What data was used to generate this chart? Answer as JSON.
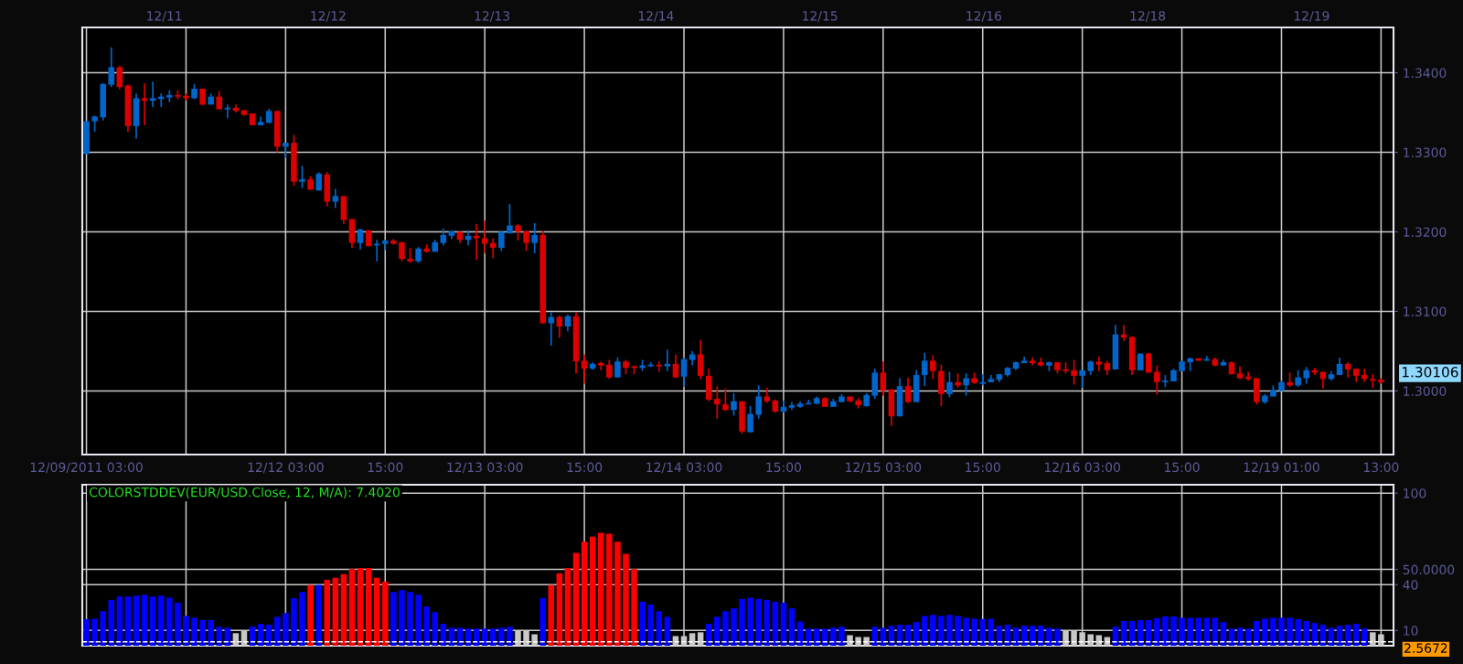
{
  "chart_data": [
    {
      "type": "candlestick",
      "categories": [
        "12/09/2011 03:00",
        null,
        null,
        null,
        null,
        null,
        null,
        null,
        null,
        null,
        null,
        null,
        null,
        null,
        null,
        null,
        null,
        null,
        null,
        null,
        null,
        null,
        null,
        null,
        "12/12 03:00",
        null,
        null,
        null,
        null,
        null,
        null,
        null,
        null,
        null,
        null,
        null,
        "15:00",
        null,
        null,
        null,
        null,
        null,
        null,
        null,
        null,
        null,
        null,
        null,
        "12/13 03:00",
        null,
        null,
        null,
        null,
        null,
        null,
        null,
        null,
        null,
        null,
        null,
        "15:00",
        null,
        null,
        null,
        null,
        null,
        null,
        null,
        null,
        null,
        null,
        null,
        "12/14 03:00",
        null,
        null,
        null,
        null,
        null,
        null,
        null,
        null,
        null,
        null,
        null,
        "15:00",
        null,
        null,
        null,
        null,
        null,
        null,
        null,
        null,
        null,
        null,
        null,
        "12/15 03:00",
        null,
        null,
        null,
        null,
        null,
        null,
        null,
        null,
        null,
        null,
        null,
        "15:00",
        null,
        null,
        null,
        null,
        null,
        null,
        null,
        null,
        null,
        null,
        null,
        "12/16 03:00",
        null,
        null,
        null,
        null,
        null,
        null,
        null,
        null,
        null,
        null,
        null,
        "15:00",
        null,
        null,
        null,
        null,
        null,
        null,
        null,
        null,
        null,
        null,
        null,
        "12/19 01:00",
        null,
        null,
        null,
        null,
        null,
        null,
        null,
        null,
        null,
        null,
        null,
        "13:00"
      ],
      "ohlc": [
        [
          1.3298,
          1.3339,
          1.3298,
          1.3339
        ],
        [
          1.3339,
          1.3346,
          1.3326,
          1.3345
        ],
        [
          1.3344,
          1.3387,
          1.334,
          1.3386
        ],
        [
          1.3385,
          1.3432,
          1.3382,
          1.3407
        ],
        [
          1.3407,
          1.3409,
          1.3379,
          1.3382
        ],
        [
          1.3384,
          1.3385,
          1.3326,
          1.3333
        ],
        [
          1.3333,
          1.3374,
          1.3317,
          1.3368
        ],
        [
          1.3368,
          1.3387,
          1.3334,
          1.3365
        ],
        [
          1.3365,
          1.3389,
          1.3357,
          1.3368
        ],
        [
          1.3367,
          1.3374,
          1.3357,
          1.337
        ],
        [
          1.3369,
          1.3378,
          1.3363,
          1.3372
        ],
        [
          1.3372,
          1.3378,
          1.3367,
          1.337
        ],
        [
          1.3371,
          1.3374,
          1.3365,
          1.3368
        ],
        [
          1.3368,
          1.3386,
          1.3367,
          1.338
        ],
        [
          1.338,
          1.338,
          1.3359,
          1.336
        ],
        [
          1.336,
          1.3374,
          1.336,
          1.337
        ],
        [
          1.337,
          1.3377,
          1.3354,
          1.3354
        ],
        [
          1.3354,
          1.336,
          1.3343,
          1.3356
        ],
        [
          1.3356,
          1.336,
          1.335,
          1.3352
        ],
        [
          1.3353,
          1.3353,
          1.3346,
          1.3347
        ],
        [
          1.3349,
          1.3349,
          1.3334,
          1.3334
        ],
        [
          1.3334,
          1.3345,
          1.3334,
          1.3338
        ],
        [
          1.3337,
          1.3355,
          1.3337,
          1.3352
        ],
        [
          1.3352,
          1.3352,
          1.33,
          1.3307
        ],
        [
          1.3307,
          1.3312,
          1.3293,
          1.3312
        ],
        [
          1.3312,
          1.3322,
          1.3258,
          1.3263
        ],
        [
          1.3263,
          1.3283,
          1.3255,
          1.3266
        ],
        [
          1.3266,
          1.327,
          1.3253,
          1.3253
        ],
        [
          1.3252,
          1.3275,
          1.3252,
          1.3273
        ],
        [
          1.3272,
          1.3275,
          1.3232,
          1.3238
        ],
        [
          1.3238,
          1.3254,
          1.323,
          1.3245
        ],
        [
          1.3245,
          1.3245,
          1.321,
          1.3215
        ],
        [
          1.3216,
          1.3216,
          1.318,
          1.3186
        ],
        [
          1.3186,
          1.3204,
          1.3178,
          1.3203
        ],
        [
          1.3202,
          1.3202,
          1.3182,
          1.3182
        ],
        [
          1.3183,
          1.319,
          1.3163,
          1.3185
        ],
        [
          1.3185,
          1.319,
          1.3177,
          1.3189
        ],
        [
          1.3189,
          1.3191,
          1.3184,
          1.3185
        ],
        [
          1.3187,
          1.3187,
          1.3163,
          1.3166
        ],
        [
          1.3166,
          1.318,
          1.3161,
          1.3163
        ],
        [
          1.3163,
          1.3181,
          1.3161,
          1.3179
        ],
        [
          1.3179,
          1.3184,
          1.3174,
          1.3175
        ],
        [
          1.3175,
          1.319,
          1.3175,
          1.3187
        ],
        [
          1.3186,
          1.3204,
          1.3183,
          1.3196
        ],
        [
          1.3195,
          1.3201,
          1.3191,
          1.3201
        ],
        [
          1.32,
          1.32,
          1.3186,
          1.319
        ],
        [
          1.319,
          1.3202,
          1.3183,
          1.3195
        ],
        [
          1.3195,
          1.321,
          1.3165,
          1.3192
        ],
        [
          1.3192,
          1.3214,
          1.3173,
          1.3185
        ],
        [
          1.3186,
          1.3192,
          1.3167,
          1.318
        ],
        [
          1.318,
          1.3202,
          1.3176,
          1.32
        ],
        [
          1.3198,
          1.3235,
          1.3198,
          1.3208
        ],
        [
          1.3208,
          1.321,
          1.3189,
          1.32
        ],
        [
          1.3201,
          1.3201,
          1.3176,
          1.3186
        ],
        [
          1.3186,
          1.3211,
          1.3173,
          1.3196
        ],
        [
          1.3196,
          1.3201,
          1.3085,
          1.3085
        ],
        [
          1.3085,
          1.3099,
          1.3057,
          1.3093
        ],
        [
          1.3093,
          1.3095,
          1.3067,
          1.3081
        ],
        [
          1.3081,
          1.3096,
          1.3075,
          1.3094
        ],
        [
          1.3094,
          1.3099,
          1.3022,
          1.3037
        ],
        [
          1.3038,
          1.3046,
          1.3009,
          1.3028
        ],
        [
          1.3028,
          1.3036,
          1.3027,
          1.3034
        ],
        [
          1.3035,
          1.3037,
          1.3026,
          1.3032
        ],
        [
          1.3033,
          1.3039,
          1.3015,
          1.3017
        ],
        [
          1.3017,
          1.3042,
          1.3017,
          1.3037
        ],
        [
          1.3037,
          1.3039,
          1.3021,
          1.3029
        ],
        [
          1.3031,
          1.3032,
          1.3021,
          1.3029
        ],
        [
          1.3029,
          1.3039,
          1.3025,
          1.3032
        ],
        [
          1.3031,
          1.3036,
          1.303,
          1.3033
        ],
        [
          1.3033,
          1.3037,
          1.3024,
          1.3031
        ],
        [
          1.3031,
          1.3052,
          1.3025,
          1.3034
        ],
        [
          1.3034,
          1.3046,
          1.3016,
          1.3017
        ],
        [
          1.3018,
          1.3042,
          1.3005,
          1.304
        ],
        [
          1.3039,
          1.305,
          1.3032,
          1.3046
        ],
        [
          1.3046,
          1.3064,
          1.3015,
          1.3019
        ],
        [
          1.3019,
          1.3028,
          1.2987,
          1.2989
        ],
        [
          1.299,
          1.3006,
          1.2965,
          1.2983
        ],
        [
          1.2983,
          1.3003,
          1.2975,
          1.2976
        ],
        [
          1.2976,
          1.2997,
          1.2969,
          1.2987
        ],
        [
          1.2987,
          1.2987,
          1.2946,
          1.2949
        ],
        [
          1.2948,
          1.2981,
          1.2948,
          1.2971
        ],
        [
          1.297,
          1.3007,
          1.2965,
          1.2993
        ],
        [
          1.2993,
          1.3004,
          1.2985,
          1.2987
        ],
        [
          1.2988,
          1.2989,
          1.2973,
          1.2974
        ],
        [
          1.2974,
          1.2988,
          1.2973,
          1.298
        ],
        [
          1.2979,
          1.2986,
          1.2976,
          1.2982
        ],
        [
          1.298,
          1.2987,
          1.2979,
          1.2984
        ],
        [
          1.2983,
          1.2989,
          1.2983,
          1.2985
        ],
        [
          1.2984,
          1.2993,
          1.2983,
          1.2991
        ],
        [
          1.2991,
          1.2992,
          1.298,
          1.298
        ],
        [
          1.298,
          1.299,
          1.298,
          1.2987
        ],
        [
          1.2986,
          1.2996,
          1.2986,
          1.2993
        ],
        [
          1.2993,
          1.2993,
          1.2986,
          1.2987
        ],
        [
          1.2988,
          1.2991,
          1.2978,
          1.2982
        ],
        [
          1.2981,
          1.2997,
          1.298,
          1.2995
        ],
        [
          1.2994,
          1.3028,
          1.299,
          1.3023
        ],
        [
          1.3023,
          1.3037,
          1.2994,
          1.3
        ],
        [
          1.3002,
          1.3002,
          1.2956,
          1.2968
        ],
        [
          1.2968,
          1.3016,
          1.2968,
          1.3006
        ],
        [
          1.3006,
          1.3017,
          1.2985,
          1.2986
        ],
        [
          1.2986,
          1.3026,
          1.2986,
          1.302
        ],
        [
          1.302,
          1.3048,
          1.3006,
          1.3038
        ],
        [
          1.3038,
          1.3045,
          1.3015,
          1.3025
        ],
        [
          1.3025,
          1.3033,
          1.2981,
          1.2996
        ],
        [
          1.2996,
          1.3024,
          1.2992,
          1.3011
        ],
        [
          1.3011,
          1.3022,
          1.3004,
          1.3007
        ],
        [
          1.3007,
          1.3022,
          1.2994,
          1.3016
        ],
        [
          1.3016,
          1.3023,
          1.3009,
          1.301
        ],
        [
          1.3009,
          1.3021,
          1.3007,
          1.3011
        ],
        [
          1.3011,
          1.302,
          1.3011,
          1.3015
        ],
        [
          1.3014,
          1.3021,
          1.3011,
          1.3021
        ],
        [
          1.302,
          1.303,
          1.3018,
          1.3029
        ],
        [
          1.3028,
          1.3037,
          1.3026,
          1.3036
        ],
        [
          1.3035,
          1.3043,
          1.3035,
          1.3038
        ],
        [
          1.3038,
          1.3042,
          1.3032,
          1.3035
        ],
        [
          1.3036,
          1.3042,
          1.3031,
          1.3032
        ],
        [
          1.3032,
          1.3037,
          1.3025,
          1.3036
        ],
        [
          1.3036,
          1.3036,
          1.3022,
          1.3026
        ],
        [
          1.3027,
          1.3036,
          1.3022,
          1.3025
        ],
        [
          1.3026,
          1.3039,
          1.3008,
          1.3019
        ],
        [
          1.3019,
          1.3026,
          1.3004,
          1.3026
        ],
        [
          1.3025,
          1.3038,
          1.302,
          1.3037
        ],
        [
          1.3037,
          1.3043,
          1.3025,
          1.3033
        ],
        [
          1.3035,
          1.3038,
          1.302,
          1.3026
        ],
        [
          1.3027,
          1.3083,
          1.3027,
          1.3071
        ],
        [
          1.3071,
          1.3083,
          1.3063,
          1.3067
        ],
        [
          1.3068,
          1.3068,
          1.302,
          1.3026
        ],
        [
          1.3026,
          1.3047,
          1.3026,
          1.3047
        ],
        [
          1.3047,
          1.3048,
          1.3023,
          1.3023
        ],
        [
          1.3024,
          1.3032,
          1.2995,
          1.3011
        ],
        [
          1.3011,
          1.302,
          1.3005,
          1.3013
        ],
        [
          1.3012,
          1.3028,
          1.3012,
          1.3026
        ],
        [
          1.3025,
          1.3038,
          1.3025,
          1.3037
        ],
        [
          1.3036,
          1.3042,
          1.3025,
          1.3041
        ],
        [
          1.3041,
          1.3041,
          1.3038,
          1.3038
        ],
        [
          1.3038,
          1.3044,
          1.3038,
          1.304
        ],
        [
          1.304,
          1.3042,
          1.3031,
          1.3032
        ],
        [
          1.3032,
          1.3039,
          1.3032,
          1.3036
        ],
        [
          1.3036,
          1.3037,
          1.3021,
          1.3021
        ],
        [
          1.3022,
          1.3031,
          1.3015,
          1.3016
        ],
        [
          1.3018,
          1.3024,
          1.3013,
          1.3015
        ],
        [
          1.3016,
          1.3016,
          1.2983,
          1.2986
        ],
        [
          1.2986,
          1.2996,
          1.2984,
          1.2994
        ],
        [
          1.2993,
          1.3007,
          1.2993,
          1.3001
        ],
        [
          1.3,
          1.3013,
          1.3,
          1.3011
        ],
        [
          1.3011,
          1.3023,
          1.3005,
          1.3007
        ],
        [
          1.3007,
          1.3026,
          1.3005,
          1.3017
        ],
        [
          1.3016,
          1.303,
          1.3009,
          1.3026
        ],
        [
          1.3026,
          1.3029,
          1.302,
          1.3023
        ],
        [
          1.3024,
          1.3024,
          1.3003,
          1.3015
        ],
        [
          1.3015,
          1.3025,
          1.3013,
          1.3021
        ],
        [
          1.302,
          1.3042,
          1.302,
          1.3034
        ],
        [
          1.3034,
          1.3036,
          1.3017,
          1.3027
        ],
        [
          1.3028,
          1.3028,
          1.3011,
          1.3019
        ],
        [
          1.302,
          1.3028,
          1.3011,
          1.3015
        ],
        [
          1.3015,
          1.3021,
          1.3004,
          1.3013
        ],
        [
          1.3014,
          1.3016,
          1.3009,
          1.3011
        ]
      ],
      "colors": [
        "#0066cc",
        "#0066cc",
        "#0066cc",
        "#0066cc",
        "#dd0000",
        "#dd0000",
        "#0066cc",
        "#dd0000",
        "#0066cc",
        "#0066cc",
        "#0066cc",
        "#dd0000",
        "#dd0000",
        "#0066cc",
        "#dd0000",
        "#0066cc",
        "#dd0000",
        "#0066cc",
        "#dd0000",
        "#dd0000",
        "#dd0000",
        "#0066cc",
        "#0066cc",
        "#dd0000",
        "#0066cc",
        "#dd0000",
        "#0066cc",
        "#dd0000",
        "#0066cc",
        "#dd0000",
        "#0066cc",
        "#dd0000",
        "#dd0000",
        "#0066cc",
        "#dd0000",
        "#0066cc",
        "#0066cc",
        "#dd0000",
        "#dd0000",
        "#dd0000",
        "#0066cc",
        "#dd0000",
        "#0066cc",
        "#0066cc",
        "#0066cc",
        "#dd0000",
        "#0066cc",
        "#dd0000",
        "#dd0000",
        "#dd0000",
        "#0066cc",
        "#0066cc",
        "#dd0000",
        "#dd0000",
        "#0066cc",
        "#dd0000",
        "#0066cc",
        "#dd0000",
        "#0066cc",
        "#dd0000",
        "#dd0000",
        "#0066cc",
        "#dd0000",
        "#dd0000",
        "#0066cc",
        "#dd0000",
        "#dd0000",
        "#0066cc",
        "#0066cc",
        "#dd0000",
        "#0066cc",
        "#dd0000",
        "#0066cc",
        "#0066cc",
        "#dd0000",
        "#dd0000",
        "#dd0000",
        "#dd0000",
        "#0066cc",
        "#dd0000",
        "#0066cc",
        "#0066cc",
        "#dd0000",
        "#dd0000",
        "#0066cc",
        "#0066cc",
        "#0066cc",
        "#0066cc",
        "#0066cc",
        "#dd0000",
        "#0066cc",
        "#0066cc",
        "#dd0000",
        "#dd0000",
        "#0066cc",
        "#0066cc",
        "#dd0000",
        "#dd0000",
        "#0066cc",
        "#dd0000",
        "#0066cc",
        "#0066cc",
        "#dd0000",
        "#dd0000",
        "#0066cc",
        "#dd0000",
        "#0066cc",
        "#dd0000",
        "#0066cc",
        "#0066cc",
        "#0066cc",
        "#0066cc",
        "#0066cc",
        "#0066cc",
        "#dd0000",
        "#dd0000",
        "#0066cc",
        "#dd0000",
        "#dd0000",
        "#dd0000",
        "#0066cc",
        "#0066cc",
        "#dd0000",
        "#dd0000",
        "#0066cc",
        "#dd0000",
        "#dd0000",
        "#0066cc",
        "#dd0000",
        "#dd0000",
        "#0066cc",
        "#0066cc",
        "#0066cc",
        "#0066cc",
        "#dd0000",
        "#0066cc",
        "#dd0000",
        "#0066cc",
        "#dd0000",
        "#dd0000",
        "#dd0000",
        "#dd0000",
        "#0066cc",
        "#0066cc",
        "#0066cc",
        "#dd0000",
        "#0066cc",
        "#0066cc",
        "#dd0000",
        "#dd0000",
        "#0066cc",
        "#0066cc",
        "#dd0000",
        "#dd0000",
        "#dd0000",
        "#dd0000",
        "#dd0000"
      ],
      "ylim": [
        1.292,
        1.3457
      ],
      "yticks": [
        {
          "value": 1.3,
          "label": "1.3000"
        },
        {
          "value": 1.31,
          "label": "1.3100"
        },
        {
          "value": 1.32,
          "label": "1.3200"
        },
        {
          "value": 1.33,
          "label": "1.3300"
        },
        {
          "value": 1.34,
          "label": "1.3400"
        }
      ],
      "grid": true,
      "annotations": [
        "12/11",
        "12/12",
        "12/13",
        "12/14",
        "12/15",
        "12/16",
        "12/18",
        "12/19",
        "1.30106"
      ]
    },
    {
      "type": "bar",
      "title": "COLORSTDDEV(EUR/USD.Close, 12, M/A): 7.4020",
      "categories": [
        null,
        null,
        null,
        null,
        null,
        null,
        null,
        null,
        null,
        null,
        null,
        null,
        null,
        null,
        null,
        null,
        null,
        null,
        null,
        null,
        null,
        null,
        null,
        null,
        null,
        null,
        null,
        null,
        null,
        null,
        null,
        null,
        null,
        null,
        null,
        null,
        null,
        null,
        null,
        null,
        null,
        null,
        null,
        null,
        null,
        null,
        null,
        null,
        null,
        null,
        null,
        null,
        null,
        null,
        null,
        null,
        null,
        null,
        null,
        null,
        null,
        null,
        null,
        null,
        null,
        null,
        null,
        null,
        null,
        null,
        null,
        null,
        null,
        null,
        null,
        null,
        null,
        null,
        null,
        null,
        null,
        null,
        null,
        null,
        null,
        null,
        null,
        null,
        null,
        null,
        null,
        null,
        null,
        null,
        null,
        null,
        null,
        null,
        null,
        null,
        null,
        null,
        null,
        null,
        null,
        null,
        null,
        null,
        null,
        null,
        null,
        null,
        null,
        null,
        null,
        null,
        null,
        null,
        null,
        null,
        null,
        null,
        null,
        null,
        null,
        null,
        null,
        null,
        null,
        null,
        null,
        null,
        null,
        null,
        null,
        null,
        null,
        null,
        null,
        null,
        null,
        null,
        null,
        null,
        null,
        null,
        null,
        null,
        null,
        null,
        null,
        null,
        null,
        null,
        null,
        null,
        null
      ],
      "values": [
        17.4,
        17.7,
        22.6,
        30.0,
        32.2,
        32.2,
        32.8,
        33.4,
        32.2,
        32.8,
        31.5,
        28.2,
        19.5,
        18.3,
        16.8,
        16.8,
        12.5,
        11.8,
        8.2,
        9.7,
        12.5,
        14.3,
        13.7,
        18.9,
        21.4,
        31.2,
        35.2,
        39.8,
        39.8,
        43.2,
        44.5,
        46.9,
        50.3,
        50.9,
        50.9,
        44.5,
        42.0,
        35.2,
        36.5,
        35.2,
        33.4,
        25.7,
        22.0,
        14.3,
        11.8,
        11.8,
        11.2,
        11.2,
        11.2,
        11.2,
        11.8,
        12.5,
        9.7,
        9.7,
        7.5,
        31.2,
        39.8,
        47.5,
        50.9,
        60.8,
        68.2,
        71.5,
        74.0,
        73.4,
        68.2,
        60.2,
        50.3,
        28.8,
        26.9,
        22.6,
        18.9,
        6.3,
        6.3,
        8.2,
        8.8,
        14.3,
        18.9,
        22.6,
        24.5,
        30.6,
        31.5,
        30.6,
        30.0,
        28.8,
        28.2,
        24.5,
        15.8,
        11.2,
        11.2,
        11.2,
        11.8,
        12.5,
        6.9,
        5.7,
        5.7,
        12.5,
        11.8,
        13.1,
        13.7,
        13.7,
        15.5,
        19.5,
        20.2,
        19.5,
        20.2,
        19.5,
        18.3,
        17.7,
        17.4,
        17.7,
        13.1,
        13.7,
        11.8,
        13.1,
        13.1,
        13.1,
        11.8,
        11.2,
        9.7,
        9.7,
        8.8,
        7.5,
        6.9,
        5.7,
        12.5,
        16.2,
        16.2,
        16.8,
        16.8,
        18.0,
        19.2,
        19.2,
        18.3,
        18.3,
        18.3,
        18.3,
        18.3,
        15.5,
        11.2,
        11.8,
        11.2,
        16.2,
        17.7,
        18.3,
        18.3,
        18.3,
        17.4,
        16.2,
        14.9,
        13.7,
        11.8,
        13.1,
        13.7,
        14.3,
        11.2,
        8.8,
        7.5
      ],
      "colors": [
        "#0000ff",
        "#0000ff",
        "#0000ff",
        "#0000ff",
        "#0000ff",
        "#0000ff",
        "#0000ff",
        "#0000ff",
        "#0000ff",
        "#0000ff",
        "#0000ff",
        "#0000ff",
        "#0000ff",
        "#0000ff",
        "#0000ff",
        "#0000ff",
        "#0000ff",
        "#0000ff",
        "#c8c8c8",
        "#c8c8c8",
        "#0000ff",
        "#0000ff",
        "#0000ff",
        "#0000ff",
        "#0000ff",
        "#0000ff",
        "#0000ff",
        "#ff0000",
        "#0000ff",
        "#ff0000",
        "#ff0000",
        "#ff0000",
        "#ff0000",
        "#ff0000",
        "#ff0000",
        "#ff0000",
        "#ff0000",
        "#0000ff",
        "#0000ff",
        "#0000ff",
        "#0000ff",
        "#0000ff",
        "#0000ff",
        "#0000ff",
        "#0000ff",
        "#0000ff",
        "#0000ff",
        "#0000ff",
        "#0000ff",
        "#0000ff",
        "#0000ff",
        "#0000ff",
        "#c8c8c8",
        "#c8c8c8",
        "#c8c8c8",
        "#0000ff",
        "#ff0000",
        "#ff0000",
        "#ff0000",
        "#ff0000",
        "#ff0000",
        "#ff0000",
        "#ff0000",
        "#ff0000",
        "#ff0000",
        "#ff0000",
        "#ff0000",
        "#0000ff",
        "#0000ff",
        "#0000ff",
        "#0000ff",
        "#c8c8c8",
        "#c8c8c8",
        "#c8c8c8",
        "#c8c8c8",
        "#0000ff",
        "#0000ff",
        "#0000ff",
        "#0000ff",
        "#0000ff",
        "#0000ff",
        "#0000ff",
        "#0000ff",
        "#0000ff",
        "#0000ff",
        "#0000ff",
        "#0000ff",
        "#0000ff",
        "#0000ff",
        "#0000ff",
        "#0000ff",
        "#0000ff",
        "#c8c8c8",
        "#c8c8c8",
        "#c8c8c8",
        "#0000ff",
        "#0000ff",
        "#0000ff",
        "#0000ff",
        "#0000ff",
        "#0000ff",
        "#0000ff",
        "#0000ff",
        "#0000ff",
        "#0000ff",
        "#0000ff",
        "#0000ff",
        "#0000ff",
        "#0000ff",
        "#0000ff",
        "#0000ff",
        "#0000ff",
        "#0000ff",
        "#0000ff",
        "#0000ff",
        "#0000ff",
        "#0000ff",
        "#0000ff",
        "#c8c8c8",
        "#c8c8c8",
        "#c8c8c8",
        "#c8c8c8",
        "#c8c8c8",
        "#c8c8c8",
        "#0000ff",
        "#0000ff",
        "#0000ff",
        "#0000ff",
        "#0000ff",
        "#0000ff",
        "#0000ff",
        "#0000ff",
        "#0000ff",
        "#0000ff",
        "#0000ff",
        "#0000ff",
        "#0000ff",
        "#0000ff",
        "#0000ff",
        "#0000ff",
        "#0000ff",
        "#0000ff",
        "#0000ff",
        "#0000ff",
        "#0000ff",
        "#0000ff",
        "#0000ff",
        "#0000ff",
        "#0000ff",
        "#0000ff",
        "#0000ff",
        "#0000ff",
        "#0000ff",
        "#0000ff",
        "#0000ff",
        "#c8c8c8",
        "#c8c8c8"
      ],
      "ylim": [
        0,
        105.5
      ],
      "yticks": [
        {
          "value": 10,
          "label": "10"
        },
        {
          "value": 40,
          "label": "40"
        },
        {
          "value": 50,
          "label": "50.0000"
        },
        {
          "value": 100,
          "label": "100"
        }
      ],
      "ref_lines": [
        {
          "axis": "y",
          "value": 2.5672,
          "label": "2.5672",
          "color": "#ffffff",
          "line_style": "dashed"
        }
      ],
      "grid": true,
      "tick_labels": "y"
    }
  ]
}
